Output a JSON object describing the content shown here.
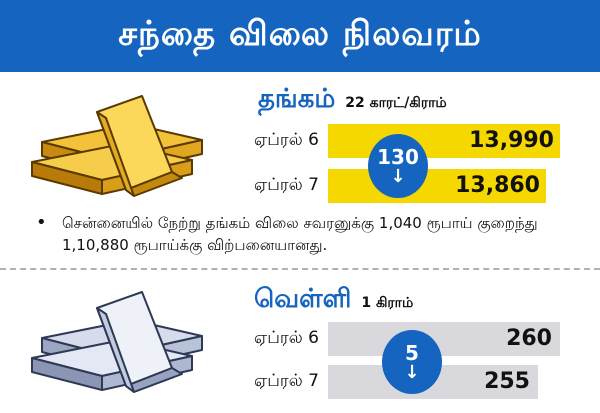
{
  "header": {
    "title": "சந்தை விலை நிலவரம்"
  },
  "gold": {
    "name": "தங்கம்",
    "unit": "22 காரட்/கிராம்",
    "rows": [
      {
        "date": "ஏப்ரல் 6",
        "price": "13,990"
      },
      {
        "date": "ஏப்ரல் 7",
        "price": "13,860"
      }
    ],
    "change": "130",
    "change_direction": "down",
    "bar_color": "#f5d800",
    "note": "சென்னையில் நேற்று தங்கம் விலை சவரனுக்கு 1,040 ரூபாய் குறைந்து 1,10,880 ரூபாய்க்கு விற்பனையானது."
  },
  "silver": {
    "name": "வெள்ளி",
    "unit": "1 கிராம்",
    "rows": [
      {
        "date": "ஏப்ரல் 6",
        "price": "260"
      },
      {
        "date": "ஏப்ரல் 7",
        "price": "255"
      }
    ],
    "change": "5",
    "change_direction": "down",
    "bar_color": "#d9d9dd"
  },
  "colors": {
    "accent": "#1565c0",
    "gold_bar": "#f5d800",
    "silver_bar": "#d9d9dd"
  }
}
